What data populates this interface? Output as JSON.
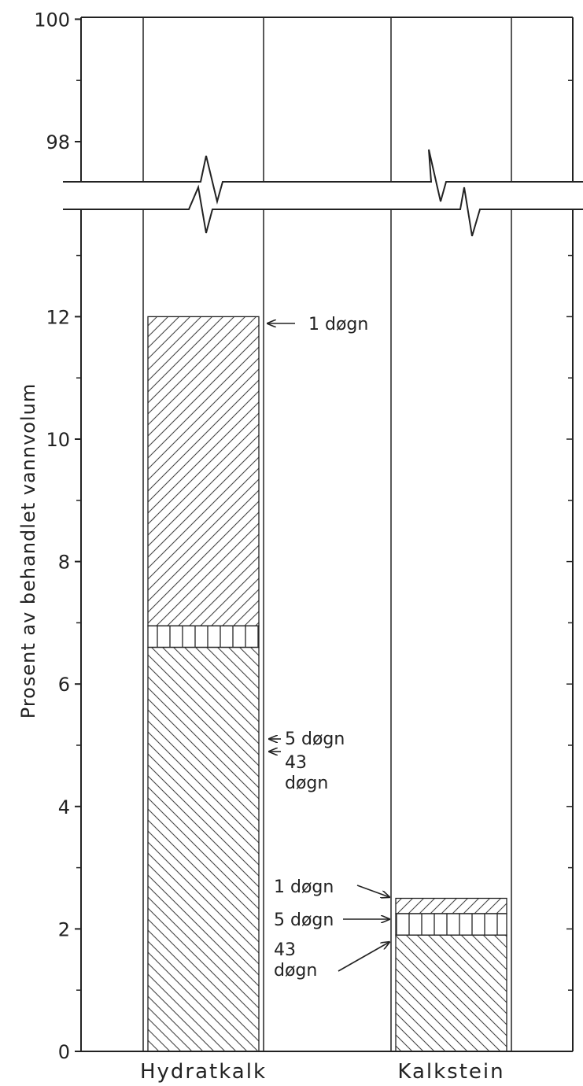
{
  "chart_data": {
    "type": "bar",
    "ylabel": "Prosent av behandlet vannvolum",
    "xlabel": "",
    "ylim_lower": [
      0,
      14
    ],
    "ylim_upper": [
      97,
      100
    ],
    "axis_break": true,
    "yticks_lower": [
      0,
      2,
      4,
      6,
      8,
      10,
      12
    ],
    "yticks_upper": [
      98,
      100
    ],
    "categories": [
      "Hydratkalk",
      "Kalkstein"
    ],
    "series": [
      {
        "name": "43 døgn",
        "values": [
          6.6,
          1.9
        ],
        "hatch": "backslash"
      },
      {
        "name": "5 døgn",
        "values": [
          0.35,
          0.35
        ],
        "hatch": "vertical"
      },
      {
        "name": "1 døgn",
        "values": [
          5.05,
          0.25
        ],
        "hatch": "slash"
      }
    ],
    "stack_tops": [
      12.0,
      2.5
    ],
    "annotations": [
      {
        "bar": "Hydratkalk",
        "y": 12.0,
        "lines": [
          "1 døgn"
        ]
      },
      {
        "bar": "Hydratkalk",
        "y": 6.95,
        "lines": [
          "5 døgn"
        ]
      },
      {
        "bar": "Hydratkalk",
        "y": 6.6,
        "lines": [
          "43",
          "døgn"
        ]
      },
      {
        "bar": "Kalkstein",
        "y": 2.5,
        "lines": [
          "1 døgn"
        ]
      },
      {
        "bar": "Kalkstein",
        "y": 2.2,
        "lines": [
          "5 døgn"
        ]
      },
      {
        "bar": "Kalkstein",
        "y": 1.85,
        "lines": [
          "43",
          "døgn"
        ]
      }
    ]
  }
}
